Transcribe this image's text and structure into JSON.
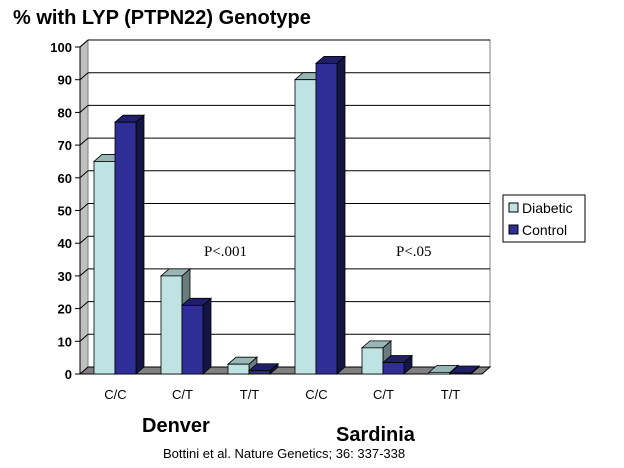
{
  "chart_data": {
    "type": "bar",
    "title": "% with LYP (PTPN22) Genotype",
    "categories": [
      "C/C",
      "C/T",
      "T/T",
      "C/C",
      "C/T",
      "T/T"
    ],
    "groups": [
      {
        "label": "Denver",
        "categories": [
          "C/C",
          "C/T",
          "T/T"
        ]
      },
      {
        "label": "Sardinia",
        "categories": [
          "C/C",
          "C/T",
          "T/T"
        ]
      }
    ],
    "series": [
      {
        "name": "Diabetic",
        "color": "#bfe3e3",
        "values": [
          65,
          30,
          3,
          90,
          8,
          0.5
        ]
      },
      {
        "name": "Control",
        "color": "#2e2e96",
        "values": [
          77,
          21,
          1,
          95,
          3.5,
          0.3
        ]
      }
    ],
    "ylim": [
      0,
      100
    ],
    "yticks": [
      "0",
      "10",
      "20",
      "30",
      "40",
      "50",
      "60",
      "70",
      "80",
      "90",
      "100"
    ],
    "grid": true,
    "legend_position": "right",
    "annotations": [
      "P<.001",
      "P<.05"
    ],
    "citation": "Bottini et al.  Nature Genetics; 36: 337-338"
  }
}
